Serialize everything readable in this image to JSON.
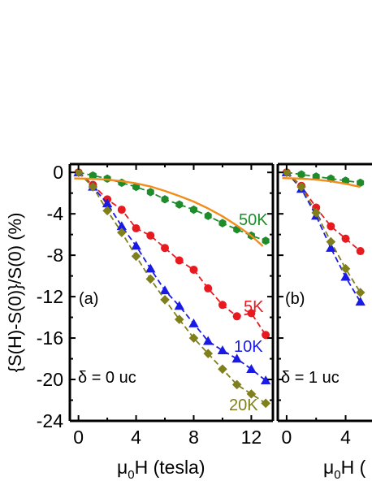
{
  "figure": {
    "ylabel": "{S(H)-S(0)}/S(0) (%)",
    "xlabel_a": {
      "base": "μ",
      "sub": "0",
      "rest": "H (tesla)"
    },
    "xlabel_b": {
      "base": "μ",
      "sub": "0",
      "rest": "H ("
    }
  },
  "colors": {
    "50K": "#1e8c2a",
    "5K": "#e8191f",
    "10K": "#1a1ae6",
    "20K": "#7f7f1c",
    "fit": "#f28c1a"
  },
  "chart_data": [
    {
      "type": "line",
      "panel_label": "(a)",
      "annotation": "δ = 0 uc",
      "xlabel": "μ0H (tesla)",
      "ylabel": "{S(H)-S(0)}/S(0) (%)",
      "xlim": [
        -0.6,
        13.5
      ],
      "ylim": [
        -24,
        0.8
      ],
      "xticks": [
        0,
        4,
        8,
        12
      ],
      "yticks": [
        0,
        -4,
        -8,
        -12,
        -16,
        -20,
        -24
      ],
      "series": [
        {
          "name": "50K",
          "marker": "hexagon",
          "x": [
            0,
            1,
            2,
            3,
            4,
            5,
            6,
            7,
            8,
            9,
            10,
            11,
            12,
            13
          ],
          "y": [
            0,
            -0.3,
            -0.6,
            -1.0,
            -1.4,
            -1.9,
            -2.6,
            -3.1,
            -3.6,
            -4.2,
            -4.9,
            -5.5,
            -6.1,
            -6.6
          ]
        },
        {
          "name": "5K",
          "marker": "circle",
          "x": [
            0,
            1,
            2,
            3,
            4,
            5,
            6,
            7,
            8,
            9,
            10,
            11,
            12,
            13
          ],
          "y": [
            0,
            -1.2,
            -2.6,
            -3.6,
            -5.4,
            -6.1,
            -7.3,
            -8.5,
            -9.4,
            -11.2,
            -12.8,
            -13.9,
            -13.6,
            -15.7
          ]
        },
        {
          "name": "10K",
          "marker": "triangle",
          "x": [
            0,
            1,
            2,
            3,
            4,
            5,
            6,
            7,
            8,
            9,
            10,
            11,
            12,
            13
          ],
          "y": [
            0,
            -1.4,
            -3.0,
            -5.2,
            -7.1,
            -9.3,
            -11.4,
            -12.9,
            -14.6,
            -16.3,
            -17.2,
            -18.0,
            -19.0,
            -20.1
          ]
        },
        {
          "name": "20K",
          "marker": "diamond",
          "x": [
            0,
            1,
            2,
            3,
            4,
            5,
            6,
            7,
            8,
            9,
            10,
            11,
            12,
            13
          ],
          "y": [
            0,
            -1.4,
            -3.7,
            -5.8,
            -8.1,
            -10.3,
            -12.3,
            -14.2,
            -16.0,
            -17.5,
            -19.0,
            -20.5,
            -21.4,
            -22.3
          ]
        },
        {
          "name": "fit",
          "marker": "none",
          "x": [
            -0.3,
            1,
            2,
            3,
            4,
            5,
            6,
            7,
            8,
            9,
            10,
            11,
            12,
            12.8
          ],
          "y": [
            -0.58,
            -0.62,
            -0.7,
            -0.84,
            -1.06,
            -1.36,
            -1.79,
            -2.28,
            -2.82,
            -3.48,
            -4.24,
            -5.13,
            -6.12,
            -7.13
          ]
        }
      ]
    },
    {
      "type": "line",
      "panel_label": "(b)",
      "annotation": "δ = 1 uc",
      "xlim": [
        -0.6,
        13.5
      ],
      "ylim": [
        -24,
        0.8
      ],
      "xticks": [
        0,
        4
      ],
      "series": [
        {
          "name": "50K",
          "marker": "hexagon",
          "x": [
            0,
            1,
            2,
            3,
            4,
            5
          ],
          "y": [
            0,
            -0.2,
            -0.4,
            -0.6,
            -0.8,
            -1.0
          ]
        },
        {
          "name": "5K",
          "marker": "circle",
          "x": [
            0,
            1,
            2,
            3,
            4,
            5
          ],
          "y": [
            0,
            -1.3,
            -3.4,
            -5.2,
            -6.4,
            -7.6
          ]
        },
        {
          "name": "10K",
          "marker": "triangle",
          "x": [
            0,
            1,
            2,
            3,
            4,
            5
          ],
          "y": [
            0,
            -1.6,
            -4.2,
            -7.3,
            -10.1,
            -12.5
          ]
        },
        {
          "name": "20K",
          "marker": "diamond",
          "x": [
            0,
            1,
            2,
            3,
            4,
            5
          ],
          "y": [
            0,
            -1.4,
            -3.9,
            -6.7,
            -9.3,
            -11.6
          ]
        },
        {
          "name": "fit",
          "marker": "none",
          "x": [
            -0.3,
            1,
            2,
            3,
            4,
            5
          ],
          "y": [
            -0.55,
            -0.6,
            -0.7,
            -0.85,
            -1.1,
            -1.4
          ]
        }
      ]
    }
  ]
}
